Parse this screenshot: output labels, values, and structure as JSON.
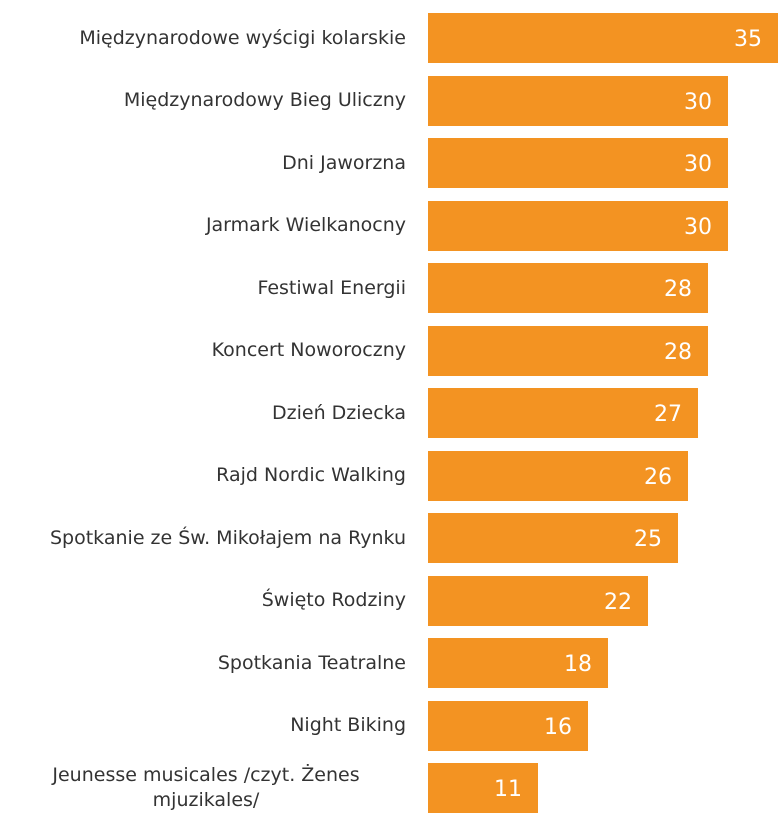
{
  "chart_data": {
    "type": "bar",
    "orientation": "horizontal",
    "categories": [
      "Międzynarodowe wyścigi kolarskie",
      "Międzynarodowy Bieg Uliczny",
      "Dni Jaworzna",
      "Jarmark Wielkanocny",
      "Festiwal Energii",
      "Koncert Noworoczny",
      "Dzień Dziecka",
      "Rajd Nordic Walking",
      "Spotkanie ze Św. Mikołajem na Rynku",
      "Święto Rodziny",
      "Spotkania Teatralne",
      "Night Biking",
      "Jeunesse musicales /czyt. Żenes mjuzikales/"
    ],
    "values": [
      35,
      30,
      30,
      30,
      28,
      28,
      27,
      26,
      25,
      22,
      18,
      16,
      11
    ],
    "color": "#f39322",
    "xlim": [
      0,
      35
    ]
  }
}
